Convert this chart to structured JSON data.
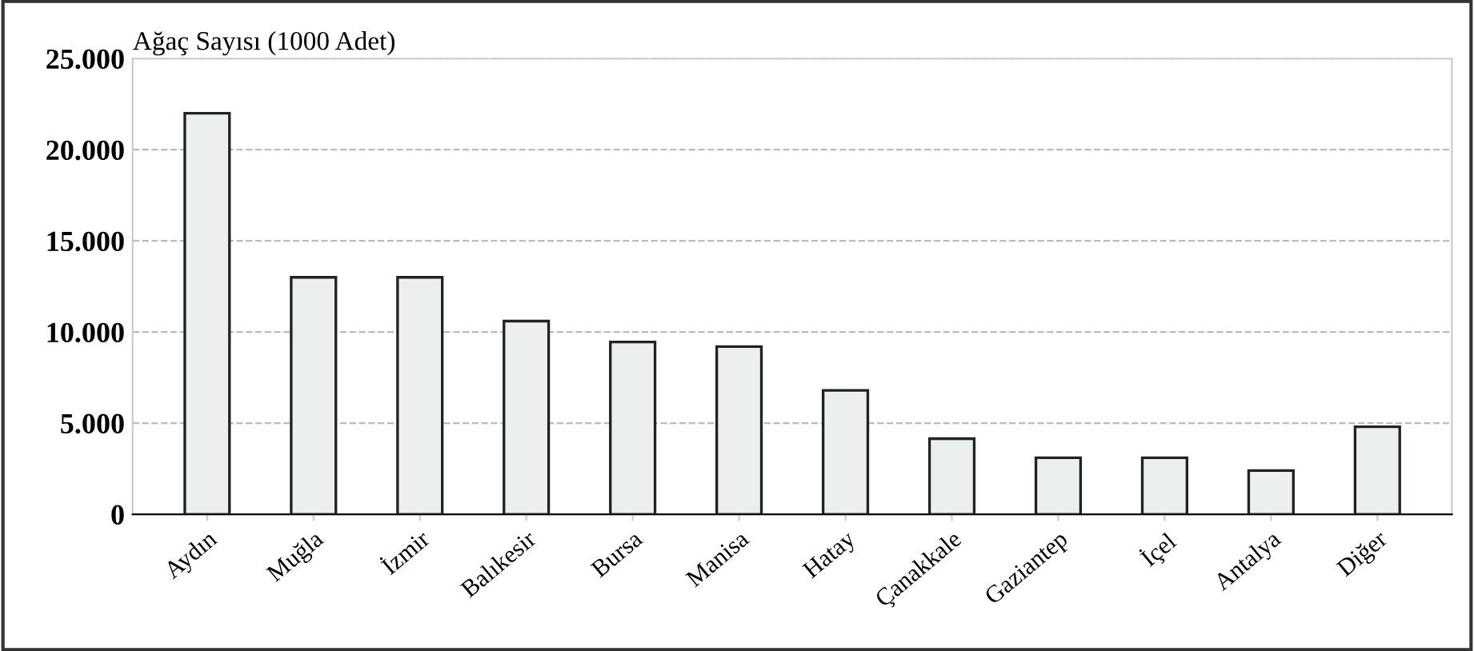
{
  "chart_data": {
    "type": "bar",
    "title": "Ağaç Sayısı (1000 Adet)",
    "categories": [
      "Aydın",
      "Muğla",
      "İzmir",
      "Balıkesir",
      "Bursa",
      "Manisa",
      "Hatay",
      "Çanakkale",
      "Gaziantep",
      "İçel",
      "Antalya",
      "Diğer"
    ],
    "values": [
      22000,
      13000,
      13000,
      10600,
      9450,
      9200,
      6800,
      4150,
      3100,
      3100,
      2400,
      4800
    ],
    "color": "#eceff0",
    "ylim": [
      0,
      25000
    ],
    "yticks": [
      {
        "value": 0,
        "label": "0"
      },
      {
        "value": 5000,
        "label": "5.000"
      },
      {
        "value": 10000,
        "label": "10.000"
      },
      {
        "value": 15000,
        "label": "15.000"
      },
      {
        "value": 20000,
        "label": "20.000"
      },
      {
        "value": 25000,
        "label": "25.000"
      }
    ],
    "grid": "y"
  }
}
